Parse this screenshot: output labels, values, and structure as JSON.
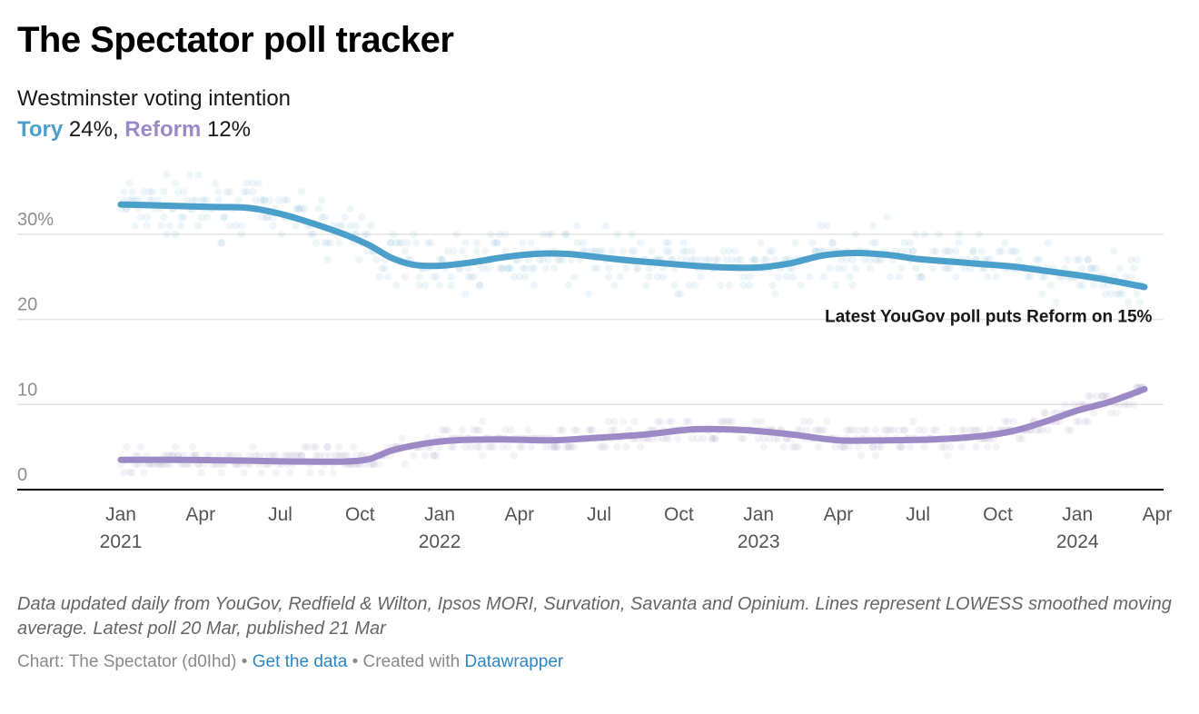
{
  "header": {
    "title": "The Spectator poll tracker",
    "subtitle": "Westminster voting intention",
    "summary": {
      "tory_label": "Tory",
      "tory_value": " 24%, ",
      "reform_label": "Reform",
      "reform_value": " 12%"
    }
  },
  "chart_data": {
    "type": "line",
    "title": "The Spectator poll tracker",
    "subtitle": "Westminster voting intention",
    "xlabel": "",
    "ylabel": "",
    "ylim": [
      0,
      35
    ],
    "y_ticks": [
      {
        "value": 0,
        "label": "0"
      },
      {
        "value": 10,
        "label": "10"
      },
      {
        "value": 20,
        "label": "20"
      },
      {
        "value": 30,
        "label": "30%"
      }
    ],
    "x_range": [
      2021.0,
      2024.25
    ],
    "x_ticks": [
      {
        "value": 2021.0,
        "label": "Jan",
        "year": "2021"
      },
      {
        "value": 2021.25,
        "label": "Apr",
        "year": ""
      },
      {
        "value": 2021.5,
        "label": "Jul",
        "year": ""
      },
      {
        "value": 2021.75,
        "label": "Oct",
        "year": ""
      },
      {
        "value": 2022.0,
        "label": "Jan",
        "year": "2022"
      },
      {
        "value": 2022.25,
        "label": "Apr",
        "year": ""
      },
      {
        "value": 2022.5,
        "label": "Jul",
        "year": ""
      },
      {
        "value": 2022.75,
        "label": "Oct",
        "year": ""
      },
      {
        "value": 2023.0,
        "label": "Jan",
        "year": "2023"
      },
      {
        "value": 2023.25,
        "label": "Apr",
        "year": ""
      },
      {
        "value": 2023.5,
        "label": "Jul",
        "year": ""
      },
      {
        "value": 2023.75,
        "label": "Oct",
        "year": ""
      },
      {
        "value": 2024.0,
        "label": "Jan",
        "year": "2024"
      },
      {
        "value": 2024.25,
        "label": "Apr",
        "year": ""
      }
    ],
    "grid": true,
    "legend": "none (inline in subtitle)",
    "series": [
      {
        "name": "Tory",
        "color": "#4a9fcb",
        "points": [
          [
            2021.0,
            33.5
          ],
          [
            2021.1,
            33.4
          ],
          [
            2021.2,
            33.3
          ],
          [
            2021.3,
            33.2
          ],
          [
            2021.4,
            33.1
          ],
          [
            2021.5,
            32.4
          ],
          [
            2021.6,
            31.3
          ],
          [
            2021.7,
            30.0
          ],
          [
            2021.78,
            28.7
          ],
          [
            2021.85,
            27.2
          ],
          [
            2021.92,
            26.4
          ],
          [
            2022.0,
            26.3
          ],
          [
            2022.1,
            26.7
          ],
          [
            2022.2,
            27.3
          ],
          [
            2022.3,
            27.7
          ],
          [
            2022.4,
            27.7
          ],
          [
            2022.5,
            27.3
          ],
          [
            2022.6,
            26.9
          ],
          [
            2022.7,
            26.6
          ],
          [
            2022.8,
            26.3
          ],
          [
            2022.9,
            26.1
          ],
          [
            2023.0,
            26.1
          ],
          [
            2023.1,
            26.6
          ],
          [
            2023.2,
            27.5
          ],
          [
            2023.3,
            27.8
          ],
          [
            2023.4,
            27.6
          ],
          [
            2023.5,
            27.1
          ],
          [
            2023.6,
            26.8
          ],
          [
            2023.7,
            26.5
          ],
          [
            2023.8,
            26.2
          ],
          [
            2023.9,
            25.7
          ],
          [
            2024.0,
            25.2
          ],
          [
            2024.1,
            24.6
          ],
          [
            2024.21,
            23.8
          ]
        ]
      },
      {
        "name": "Reform",
        "color": "#9c8ac7",
        "points": [
          [
            2021.0,
            3.5
          ],
          [
            2021.2,
            3.5
          ],
          [
            2021.4,
            3.4
          ],
          [
            2021.55,
            3.3
          ],
          [
            2021.7,
            3.3
          ],
          [
            2021.78,
            3.6
          ],
          [
            2021.85,
            4.6
          ],
          [
            2021.95,
            5.4
          ],
          [
            2022.05,
            5.8
          ],
          [
            2022.2,
            5.9
          ],
          [
            2022.35,
            5.8
          ],
          [
            2022.5,
            6.1
          ],
          [
            2022.65,
            6.5
          ],
          [
            2022.8,
            7.1
          ],
          [
            2022.95,
            7.0
          ],
          [
            2023.1,
            6.5
          ],
          [
            2023.25,
            5.8
          ],
          [
            2023.4,
            5.8
          ],
          [
            2023.55,
            5.9
          ],
          [
            2023.7,
            6.3
          ],
          [
            2023.8,
            6.9
          ],
          [
            2023.9,
            8.0
          ],
          [
            2024.0,
            9.3
          ],
          [
            2024.1,
            10.3
          ],
          [
            2024.21,
            11.8
          ]
        ]
      }
    ],
    "annotations": [
      {
        "text": "Latest YouGov poll puts Reform on 15%",
        "x": 2024.2,
        "y": 19.7
      }
    ]
  },
  "footer": {
    "notes": "Data updated daily from YouGov, Redfield & Wilton, Ipsos MORI, Survation, Savanta and Opinium. Lines represent LOWESS smoothed moving average. Latest poll 20 Mar, published 21 Mar",
    "credit": "Chart: The Spectator (d0Ihd)",
    "separator": " • ",
    "get_data_label": "Get the data",
    "created_with_label": "Created with ",
    "datawrapper_label": "Datawrapper"
  }
}
